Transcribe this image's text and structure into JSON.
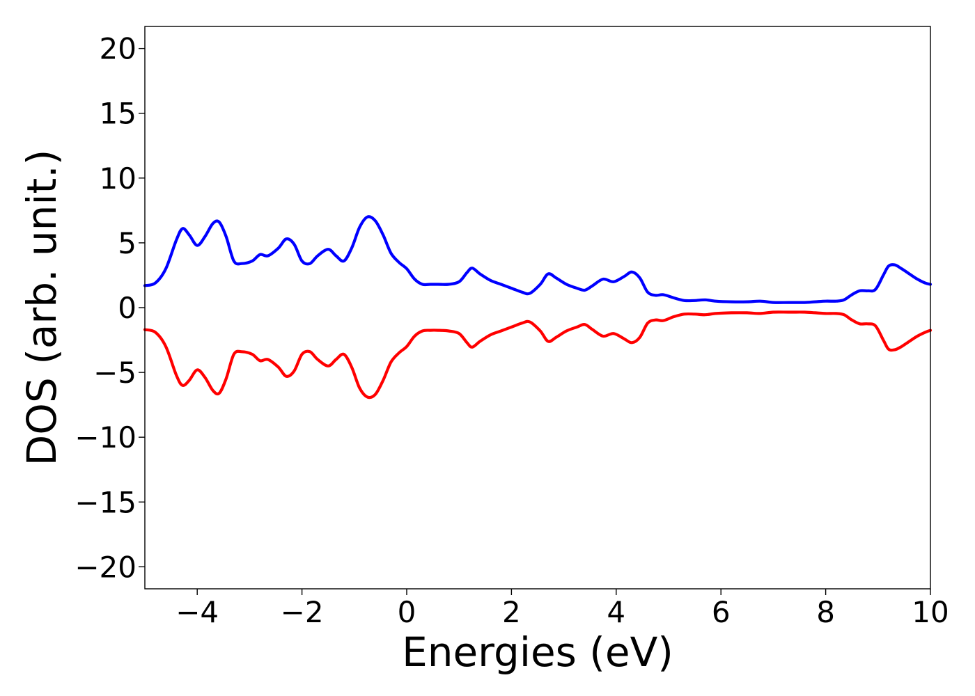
{
  "chart_data": {
    "type": "line",
    "title": "",
    "xlabel": "Energies (eV)",
    "ylabel": "DOS (arb. unit.)",
    "xlim": [
      -5,
      10
    ],
    "ylim": [
      -21.7,
      21.7
    ],
    "grid": false,
    "xticks": [
      -4,
      -2,
      0,
      2,
      4,
      6,
      8,
      10
    ],
    "xtick_labels": [
      "−4",
      "−2",
      "0",
      "2",
      "4",
      "6",
      "8",
      "10"
    ],
    "yticks": [
      20,
      15,
      10,
      5,
      0,
      -5,
      -10,
      -15,
      -20
    ],
    "ytick_labels": [
      "20",
      "15",
      "10",
      "5",
      "0",
      "−5",
      "−10",
      "−15",
      "−20"
    ],
    "series": [
      {
        "color": "#0000ff",
        "x": [
          -5.0,
          -4.8,
          -4.6,
          -4.4,
          -4.28,
          -4.15,
          -4.0,
          -3.85,
          -3.7,
          -3.58,
          -3.45,
          -3.3,
          -3.15,
          -2.95,
          -2.8,
          -2.65,
          -2.45,
          -2.3,
          -2.15,
          -2.0,
          -1.85,
          -1.7,
          -1.5,
          -1.35,
          -1.2,
          -1.05,
          -0.9,
          -0.75,
          -0.6,
          -0.45,
          -0.3,
          -0.15,
          0.0,
          0.15,
          0.3,
          0.45,
          0.6,
          0.8,
          1.0,
          1.15,
          1.25,
          1.4,
          1.6,
          1.8,
          2.0,
          2.2,
          2.35,
          2.55,
          2.7,
          2.85,
          3.05,
          3.25,
          3.4,
          3.55,
          3.75,
          3.95,
          4.15,
          4.3,
          4.45,
          4.6,
          4.75,
          4.9,
          5.1,
          5.3,
          5.5,
          5.7,
          5.9,
          6.2,
          6.5,
          6.75,
          7.0,
          7.3,
          7.6,
          7.8,
          8.0,
          8.2,
          8.35,
          8.5,
          8.65,
          8.8,
          8.95,
          9.1,
          9.2,
          9.32,
          9.45,
          9.6,
          9.75,
          9.9,
          10.0
        ],
        "values": [
          1.7,
          1.9,
          3.0,
          5.2,
          6.1,
          5.6,
          4.8,
          5.5,
          6.5,
          6.6,
          5.5,
          3.6,
          3.4,
          3.6,
          4.1,
          4.0,
          4.6,
          5.3,
          4.9,
          3.6,
          3.4,
          4.0,
          4.5,
          4.0,
          3.6,
          4.6,
          6.2,
          7.0,
          6.7,
          5.6,
          4.2,
          3.5,
          3.0,
          2.2,
          1.8,
          1.8,
          1.8,
          1.8,
          2.0,
          2.7,
          3.05,
          2.6,
          2.1,
          1.8,
          1.5,
          1.2,
          1.1,
          1.8,
          2.6,
          2.3,
          1.8,
          1.5,
          1.35,
          1.7,
          2.2,
          2.0,
          2.4,
          2.75,
          2.3,
          1.2,
          0.95,
          1.0,
          0.75,
          0.55,
          0.55,
          0.6,
          0.5,
          0.45,
          0.45,
          0.5,
          0.4,
          0.4,
          0.4,
          0.45,
          0.5,
          0.5,
          0.6,
          1.0,
          1.3,
          1.3,
          1.4,
          2.5,
          3.2,
          3.3,
          3.0,
          2.6,
          2.2,
          1.9,
          1.8
        ]
      },
      {
        "color": "#ff0000",
        "x": [
          -5.0,
          -4.8,
          -4.6,
          -4.4,
          -4.28,
          -4.15,
          -4.0,
          -3.85,
          -3.7,
          -3.58,
          -3.45,
          -3.3,
          -3.15,
          -2.95,
          -2.8,
          -2.65,
          -2.45,
          -2.3,
          -2.15,
          -2.0,
          -1.85,
          -1.7,
          -1.5,
          -1.35,
          -1.2,
          -1.05,
          -0.9,
          -0.75,
          -0.6,
          -0.45,
          -0.3,
          -0.15,
          0.0,
          0.15,
          0.3,
          0.45,
          0.6,
          0.8,
          1.0,
          1.15,
          1.25,
          1.4,
          1.6,
          1.8,
          2.0,
          2.2,
          2.35,
          2.55,
          2.7,
          2.85,
          3.05,
          3.25,
          3.4,
          3.55,
          3.75,
          3.95,
          4.15,
          4.3,
          4.45,
          4.6,
          4.75,
          4.9,
          5.1,
          5.3,
          5.5,
          5.7,
          5.9,
          6.2,
          6.5,
          6.75,
          7.0,
          7.3,
          7.6,
          7.8,
          8.0,
          8.2,
          8.35,
          8.5,
          8.65,
          8.8,
          8.95,
          9.1,
          9.2,
          9.32,
          9.45,
          9.6,
          9.75,
          9.9,
          10.0
        ],
        "values": [
          -1.7,
          -1.9,
          -3.0,
          -5.2,
          -6.0,
          -5.6,
          -4.8,
          -5.4,
          -6.4,
          -6.6,
          -5.5,
          -3.6,
          -3.4,
          -3.6,
          -4.1,
          -4.0,
          -4.6,
          -5.3,
          -4.9,
          -3.6,
          -3.4,
          -4.0,
          -4.5,
          -4.0,
          -3.6,
          -4.6,
          -6.2,
          -6.9,
          -6.7,
          -5.6,
          -4.2,
          -3.5,
          -3.0,
          -2.2,
          -1.8,
          -1.75,
          -1.75,
          -1.8,
          -2.0,
          -2.7,
          -3.05,
          -2.6,
          -2.1,
          -1.8,
          -1.5,
          -1.2,
          -1.1,
          -1.8,
          -2.6,
          -2.3,
          -1.8,
          -1.5,
          -1.3,
          -1.7,
          -2.2,
          -2.0,
          -2.4,
          -2.7,
          -2.3,
          -1.2,
          -0.95,
          -1.0,
          -0.7,
          -0.5,
          -0.5,
          -0.55,
          -0.45,
          -0.4,
          -0.4,
          -0.45,
          -0.35,
          -0.35,
          -0.35,
          -0.4,
          -0.45,
          -0.45,
          -0.55,
          -0.95,
          -1.25,
          -1.25,
          -1.4,
          -2.5,
          -3.2,
          -3.25,
          -3.0,
          -2.6,
          -2.2,
          -1.9,
          -1.75
        ]
      }
    ]
  }
}
